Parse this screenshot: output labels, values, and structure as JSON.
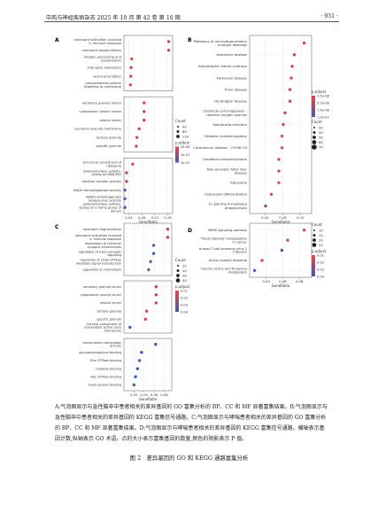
{
  "header": {
    "journal_info": "中风与神经疾病杂志 2025 年 10 月 第 42 卷 第 10 期",
    "page_number": "· 931 ·"
  },
  "caption": {
    "text": "A:气泡图显示与急性脑卒中患者相关的差异基因的 GO 富集分析的 BP、CC 和 MF 显著富集结果。B:气泡图显示与急性脑卒中患者相关的差异基因的 KEGG 富集信号通路。C:气泡图显示与哮喘患者相关的差异基因的 GO 富集分析的 BP、CC 和 MF 显著富集结果。D:气泡图显示与哮喘患者相关的差异基因的 KEGG 富集信号通路。横轴表示基因计数,纵轴表示 GO 术语。点的大小表示富集基因的数量,颜色的阴影表示 P 值。",
    "figure_title": "图 2　差异基因的 GO 和 KEGG 通路富集分析"
  },
  "chart_data": [
    {
      "type": "scatter",
      "panel": "A",
      "xlabel": "GeneRatio",
      "xlim": [
        0.025,
        0.175
      ],
      "xticks": [
        0.04,
        0.08,
        0.12,
        0.16
      ],
      "xtick_labels": [
        "0.04",
        "0.08",
        "0.12",
        "0.16"
      ],
      "legend_count_title": "Count",
      "legend_count_labels": [
        "40",
        "80",
        "120"
      ],
      "legend_p_title": "p.adjust",
      "legend_p_labels": [
        "2e-08",
        "1e-07",
        "5e-07"
      ],
      "groups": [
        {
          "terms": [
            {
              "label": "neutrophil activation involved in immune response",
              "x": 0.163,
              "color": "#d8424a"
            },
            {
              "label": "neutrophil degranulation",
              "x": 0.163,
              "color": "#d8424a"
            },
            {
              "label": "antigen processing and presentation",
              "x": 0.049,
              "color": "#d64a4f"
            },
            {
              "label": "viral gene expression",
              "x": 0.047,
              "color": "#d64a4f"
            },
            {
              "label": "viral transcription",
              "x": 0.046,
              "color": "#d84a50"
            },
            {
              "label": "cotranslational protein targeting to membrane",
              "x": 0.045,
              "color": "#d84a50"
            }
          ]
        },
        {
          "terms": [
            {
              "label": "secretory granule lumen",
              "x": 0.087,
              "color": "#d8424a"
            },
            {
              "label": "cytoplasmic vesicle lumen",
              "x": 0.087,
              "color": "#d8424a"
            },
            {
              "label": "vesicle lumen",
              "x": 0.087,
              "color": "#d8424a"
            },
            {
              "label": "secretory granule membrane",
              "x": 0.072,
              "color": "#d64a4f"
            },
            {
              "label": "tertiary granule",
              "x": 0.065,
              "color": "#d64a4f"
            },
            {
              "label": "specific granule",
              "x": 0.063,
              "color": "#d84a50"
            }
          ]
        },
        {
          "terms": [
            {
              "label": "structural constituent of ribosome",
              "x": 0.052,
              "color": "#d64a4f"
            },
            {
              "label": "oxidoreductase activity, acting on NAD(P)H",
              "x": 0.033,
              "color": "#c84a58"
            },
            {
              "label": "electron transfer activity",
              "x": 0.033,
              "color": "#b2426a"
            },
            {
              "label": "NADH dehydrogenase activity",
              "x": 0.028,
              "color": "#5a5c9a"
            },
            {
              "label": "NADH dehydrogenase (ubiquinone) activity",
              "x": 0.028,
              "color": "#5a5c9a"
            },
            {
              "label": "oxidoreductase activity, acting on a heme group of donors",
              "x": 0.028,
              "color": "#3d5fa8"
            }
          ]
        }
      ]
    },
    {
      "type": "scatter",
      "panel": "B",
      "xlabel": "GeneRatio",
      "xlim": [
        0.005,
        0.145
      ],
      "xticks": [
        0.04,
        0.08,
        0.12
      ],
      "xtick_labels": [
        "0.04",
        "0.08",
        "0.12"
      ],
      "legend_p_title": "p.adjust",
      "legend_p_labels": [
        "2.5e-08",
        "5.0e-08",
        "7.5e-08",
        "1.0e-07"
      ],
      "legend_count_title": "Count",
      "legend_count_labels": [
        "30",
        "40",
        "50",
        "60",
        "70"
      ],
      "groups": [
        {
          "terms": [
            {
              "label": "Pathways of neurodegeneration - multiple diseases",
              "x": 0.128,
              "color": "#d8424a"
            },
            {
              "label": "Alzheimer disease",
              "x": 0.106,
              "color": "#d8424a"
            },
            {
              "label": "Amyotrophic lateral sclerosis",
              "x": 0.101,
              "color": "#d8424a"
            },
            {
              "label": "Parkinson disease",
              "x": 0.099,
              "color": "#d8424a"
            },
            {
              "label": "Prion disease",
              "x": 0.096,
              "color": "#d8424a"
            },
            {
              "label": "Huntington disease",
              "x": 0.096,
              "color": "#d8424a"
            },
            {
              "label": "Chemical carcinogenesis - reactive oxygen species",
              "x": 0.085,
              "color": "#d64a4f"
            },
            {
              "label": "Salmonella infection",
              "x": 0.081,
              "color": "#d64a4f"
            },
            {
              "label": "Diabetic cardiomyopathy",
              "x": 0.078,
              "color": "#d64a4f"
            },
            {
              "label": "Coronavirus disease - COVID-19",
              "x": 0.078,
              "color": "#d64a4f"
            },
            {
              "label": "Oxidative phosphorylation",
              "x": 0.071,
              "color": "#d64a4f"
            },
            {
              "label": "Non-alcoholic fatty liver disease",
              "x": 0.071,
              "color": "#d64a4f"
            },
            {
              "label": "Ribosome",
              "x": 0.071,
              "color": "#d64a4f"
            },
            {
              "label": "Osteoclast differentiation",
              "x": 0.054,
              "color": "#d84a50"
            },
            {
              "label": "Fc gamma R-mediated phagocytosis",
              "x": 0.041,
              "color": "#8a4a7a"
            }
          ]
        }
      ]
    },
    {
      "type": "scatter",
      "panel": "C",
      "xlabel": "GeneRatio",
      "xlim": [
        0.0,
        0.095
      ],
      "xticks": [
        0.02,
        0.04,
        0.06,
        0.08
      ],
      "xtick_labels": [
        "0.02",
        "0.04",
        "0.06",
        "0.08"
      ],
      "legend_count_title": "Count",
      "legend_count_labels": [
        "10",
        "20",
        "30",
        "40"
      ],
      "legend_p_title": "p.adjust",
      "legend_p_labels": [
        "0.01",
        "0.02",
        "0.03",
        "0.04"
      ],
      "groups": [
        {
          "terms": [
            {
              "label": "neutrophil degranulation",
              "x": 0.087,
              "color": "#d8424a"
            },
            {
              "label": "neutrophil activation involved in immune response",
              "x": 0.087,
              "color": "#d8424a"
            },
            {
              "label": "modulation of chemical synaptic transmission",
              "x": 0.059,
              "color": "#3d5fa8"
            },
            {
              "label": "regulation of trans-synaptic signaling",
              "x": 0.059,
              "color": "#3d5fa8"
            },
            {
              "label": "regulation of small GTPase mediated signal transduction",
              "x": 0.053,
              "color": "#5a5c9a"
            },
            {
              "label": "regulation of chemotaxis",
              "x": 0.049,
              "color": "#5a5c9a"
            }
          ]
        },
        {
          "terms": [
            {
              "label": "secretory granule lumen",
              "x": 0.064,
              "color": "#d8424a"
            },
            {
              "label": "cytoplasmic vesicle lumen",
              "x": 0.064,
              "color": "#d8424a"
            },
            {
              "label": "vesicle lumen",
              "x": 0.064,
              "color": "#d8424a"
            },
            {
              "label": "tertiary granule",
              "x": 0.045,
              "color": "#d64a4f"
            },
            {
              "label": "specific granule",
              "x": 0.043,
              "color": "#d64a4f"
            },
            {
              "label": "intrinsic component of presynaptic active zone membrane",
              "x": 0.012,
              "color": "#3d5fa8"
            }
          ]
        },
        {
          "terms": [
            {
              "label": "transcription coregulator activity",
              "x": 0.063,
              "color": "#3d5fa8"
            },
            {
              "label": "glycosaminoglycan binding",
              "x": 0.035,
              "color": "#3d5fa8"
            },
            {
              "label": "Rho GTPase binding",
              "x": 0.031,
              "color": "#3d5fa8"
            },
            {
              "label": "cytokine binding",
              "x": 0.027,
              "color": "#3d5fa8"
            },
            {
              "label": "Rac GTPase binding",
              "x": 0.023,
              "color": "#3d5fa8"
            },
            {
              "label": "heat-canonic binding",
              "x": 0.02,
              "color": "#3d5fa8"
            }
          ]
        }
      ]
    },
    {
      "type": "scatter",
      "panel": "D",
      "xlabel": "GeneRatio",
      "xlim": [
        0.02,
        0.095
      ],
      "xticks": [
        0.04,
        0.06,
        0.08
      ],
      "xtick_labels": [
        "0.04",
        "0.06",
        "0.08"
      ],
      "legend_count_title": "Count",
      "legend_count_labels": [
        "10",
        "15",
        "20",
        "25"
      ],
      "legend_p_title": "p.adjust",
      "legend_p_labels": [
        "0.01",
        "0.02",
        "0.03",
        "0.04"
      ],
      "groups": [
        {
          "terms": [
            {
              "label": "MAPK signaling pathway",
              "x": 0.086,
              "color": "#d8424a"
            },
            {
              "label": "Transcriptional misregulation in cancer",
              "x": 0.066,
              "color": "#d84a50"
            },
            {
              "label": "Human T-cell leukemia virus 1 infection",
              "x": 0.059,
              "color": "#3d5fa8"
            },
            {
              "label": "Acute myeloid leukemia",
              "x": 0.035,
              "color": "#d8424a"
            },
            {
              "label": "Glycine serine and threonine metabolism",
              "x": 0.026,
              "color": "#3d5fa8"
            }
          ]
        }
      ]
    }
  ]
}
